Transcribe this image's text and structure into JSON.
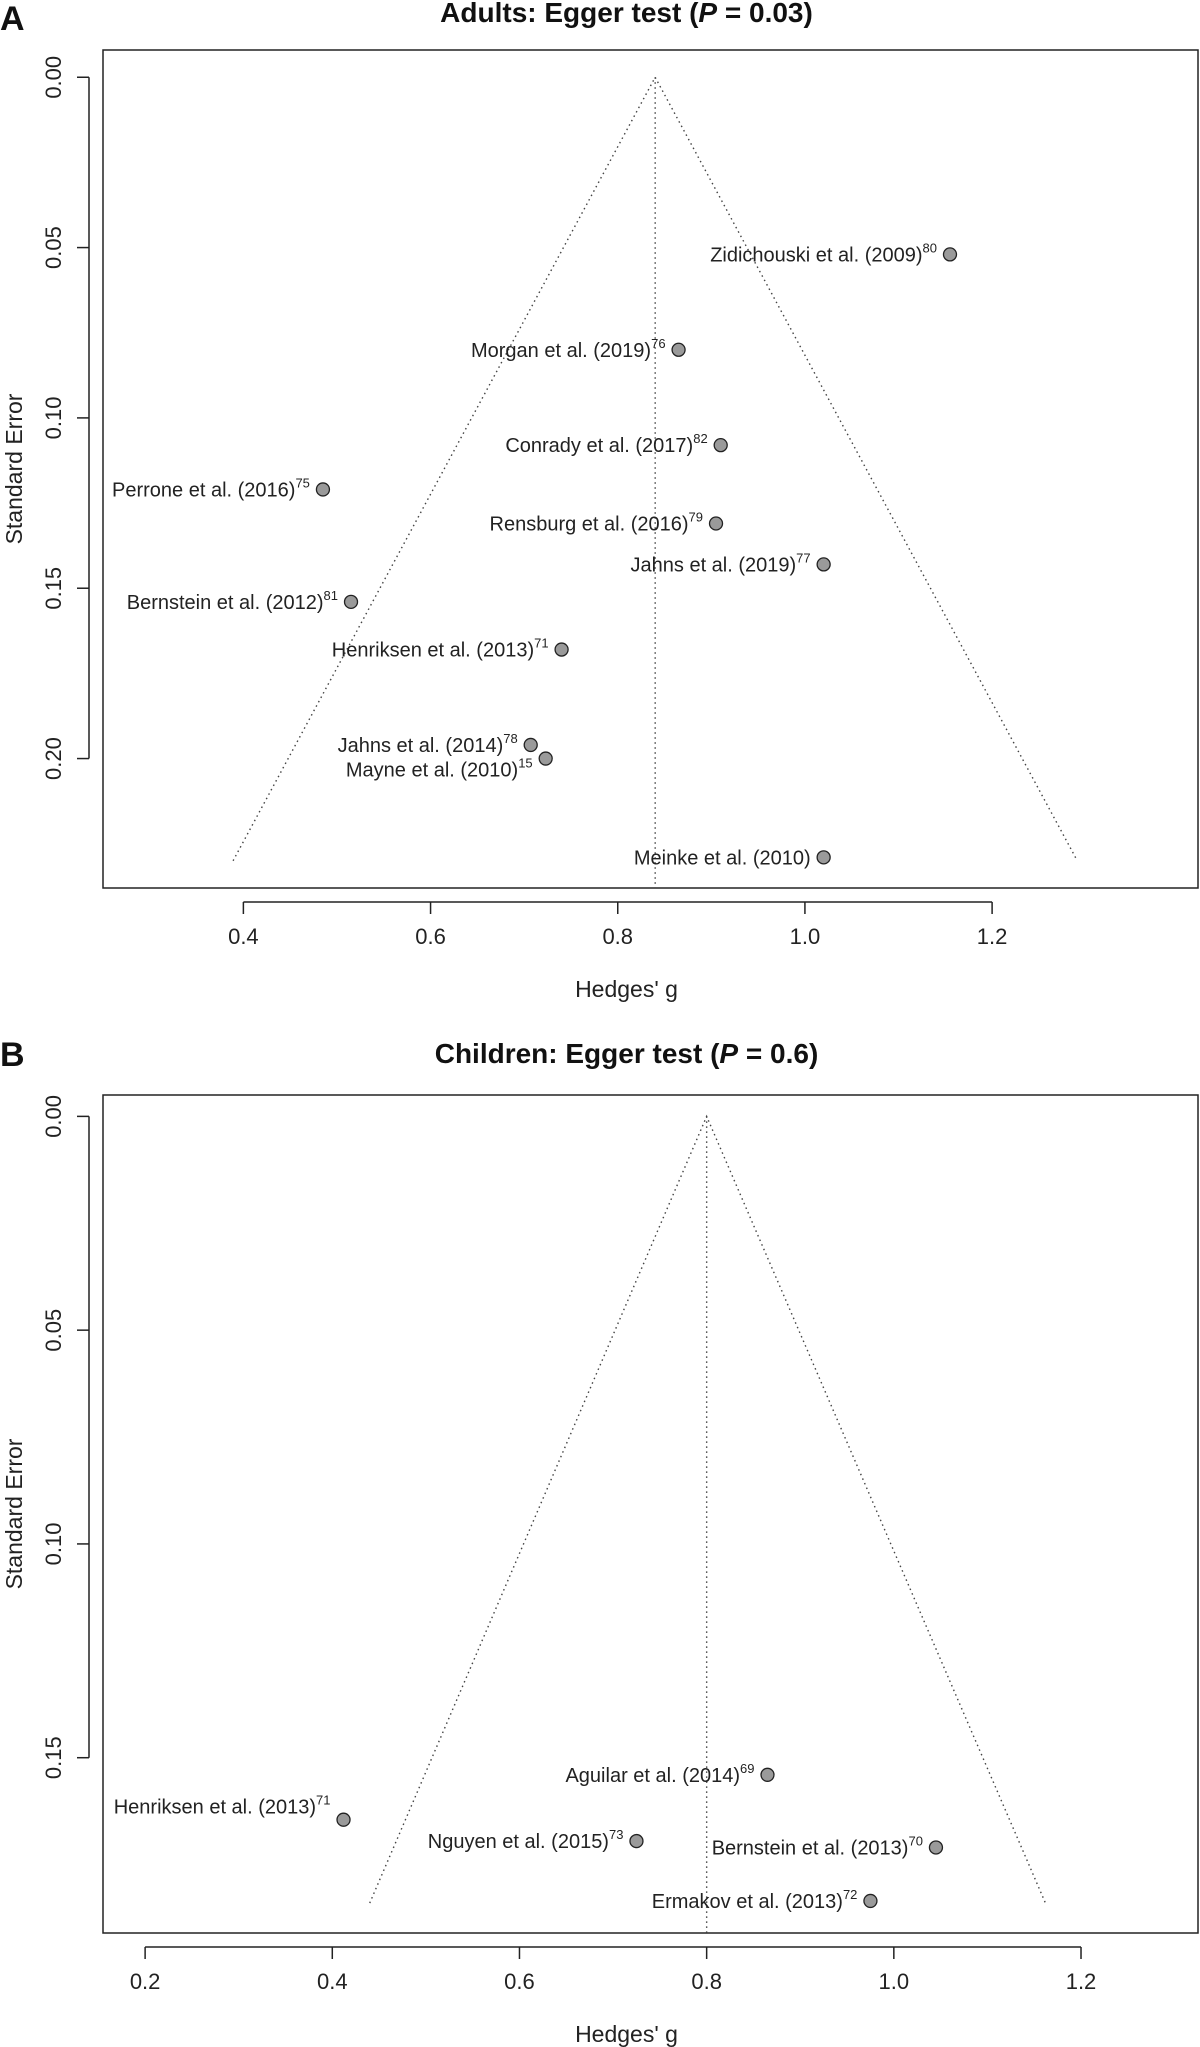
{
  "chart_data": [
    {
      "type": "scatter",
      "panel_letter": "A",
      "title": "Adults: Egger test (P = 0.03)",
      "title_parts": {
        "before": "Adults: Egger test (",
        "italic": "P",
        "after": " = 0.03)"
      },
      "xlabel": "Hedges' g",
      "ylabel": "Standard Error",
      "xlim": [
        0.25,
        1.42
      ],
      "ylim": [
        0.238,
        -0.008
      ],
      "y_inverted": true,
      "xticks": [
        0.4,
        0.6,
        0.8,
        1.0,
        1.2
      ],
      "xtick_labels": [
        "0.4",
        "0.6",
        "0.8",
        "1.0",
        "1.2"
      ],
      "yticks": [
        0.0,
        0.05,
        0.1,
        0.15,
        0.2
      ],
      "ytick_labels": [
        "0.00",
        "0.05",
        "0.10",
        "0.15",
        "0.20"
      ],
      "pooled_effect": 0.84,
      "funnel_max_se": 0.23,
      "funnel_left_at_max": 0.389,
      "funnel_right_at_max": 1.291,
      "grid": false,
      "points": [
        {
          "label": "Zidichouski et al. (2009)",
          "ref": "80",
          "x": 1.155,
          "y": 0.052,
          "label_side": "left"
        },
        {
          "label": "Morgan et al. (2019)",
          "ref": "76",
          "x": 0.865,
          "y": 0.08,
          "label_side": "left"
        },
        {
          "label": "Conrady et al. (2017)",
          "ref": "82",
          "x": 0.91,
          "y": 0.108,
          "label_side": "left"
        },
        {
          "label": "Perrone et al. (2016)",
          "ref": "75",
          "x": 0.485,
          "y": 0.121,
          "label_side": "left"
        },
        {
          "label": "Rensburg et al. (2016)",
          "ref": "79",
          "x": 0.905,
          "y": 0.131,
          "label_side": "left"
        },
        {
          "label": "Jahns et al. (2019)",
          "ref": "77",
          "x": 1.02,
          "y": 0.143,
          "label_side": "left"
        },
        {
          "label": "Bernstein et al. (2012)",
          "ref": "81",
          "x": 0.515,
          "y": 0.154,
          "label_side": "left"
        },
        {
          "label": "Henriksen et al. (2013)",
          "ref": "71",
          "x": 0.74,
          "y": 0.168,
          "label_side": "left"
        },
        {
          "label": "Jahns et al. (2014)",
          "ref": "78",
          "x": 0.707,
          "y": 0.196,
          "label_side": "left"
        },
        {
          "label": "Mayne et al. (2010)",
          "ref": "15",
          "x": 0.723,
          "y": 0.2,
          "label_side": "left-below"
        },
        {
          "label": "Meinke et al. (2010)",
          "ref": "",
          "x": 1.02,
          "y": 0.229,
          "label_side": "left"
        }
      ]
    },
    {
      "type": "scatter",
      "panel_letter": "B",
      "title": "Children: Egger test (P = 0.6)",
      "title_parts": {
        "before": "Children: Egger test (",
        "italic": "P",
        "after": " = 0.6)"
      },
      "xlabel": "Hedges' g",
      "ylabel": "Standard Error",
      "xlim": [
        0.155,
        1.325
      ],
      "ylim": [
        0.191,
        -0.005
      ],
      "y_inverted": true,
      "xticks": [
        0.2,
        0.4,
        0.6,
        0.8,
        1.0,
        1.2
      ],
      "xtick_labels": [
        "0.2",
        "0.4",
        "0.6",
        "0.8",
        "1.0",
        "1.2"
      ],
      "yticks": [
        0.0,
        0.05,
        0.1,
        0.15
      ],
      "ytick_labels": [
        "0.00",
        "0.05",
        "0.10",
        "0.15"
      ],
      "pooled_effect": 0.8,
      "funnel_max_se": 0.184,
      "funnel_left_at_max": 0.44,
      "funnel_right_at_max": 1.162,
      "grid": false,
      "points": [
        {
          "label": "Aguilar et al. (2014)",
          "ref": "69",
          "x": 0.865,
          "y": 0.154,
          "label_side": "left"
        },
        {
          "label": "Henriksen et al. (2013)",
          "ref": "71",
          "x": 0.412,
          "y": 0.1645,
          "label_side": "left-above"
        },
        {
          "label": "Nguyen et al. (2015)",
          "ref": "73",
          "x": 0.725,
          "y": 0.1695,
          "label_side": "left"
        },
        {
          "label": "Bernstein et al. (2013)",
          "ref": "70",
          "x": 1.045,
          "y": 0.171,
          "label_side": "left"
        },
        {
          "label": "Ermakov et al. (2013)",
          "ref": "72",
          "x": 0.975,
          "y": 0.1835,
          "label_side": "left"
        }
      ]
    }
  ]
}
